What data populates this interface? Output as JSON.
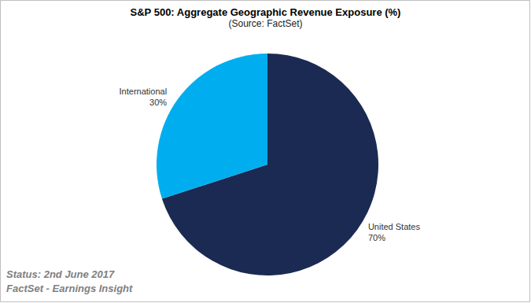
{
  "chart_data": {
    "type": "pie",
    "title": "S&P 500: Aggregate Geographic Revenue Exposure (%)",
    "subtitle": "(Source: FactSet)",
    "categories": [
      "United States",
      "International"
    ],
    "values": [
      70,
      30
    ],
    "value_labels": [
      "70%",
      "30%"
    ],
    "colors": [
      "#1b2a52",
      "#00aeef"
    ],
    "data_labels": true,
    "annotations": [
      "Status: 2nd June 2017",
      "FactSet - Earnings Insight"
    ]
  }
}
